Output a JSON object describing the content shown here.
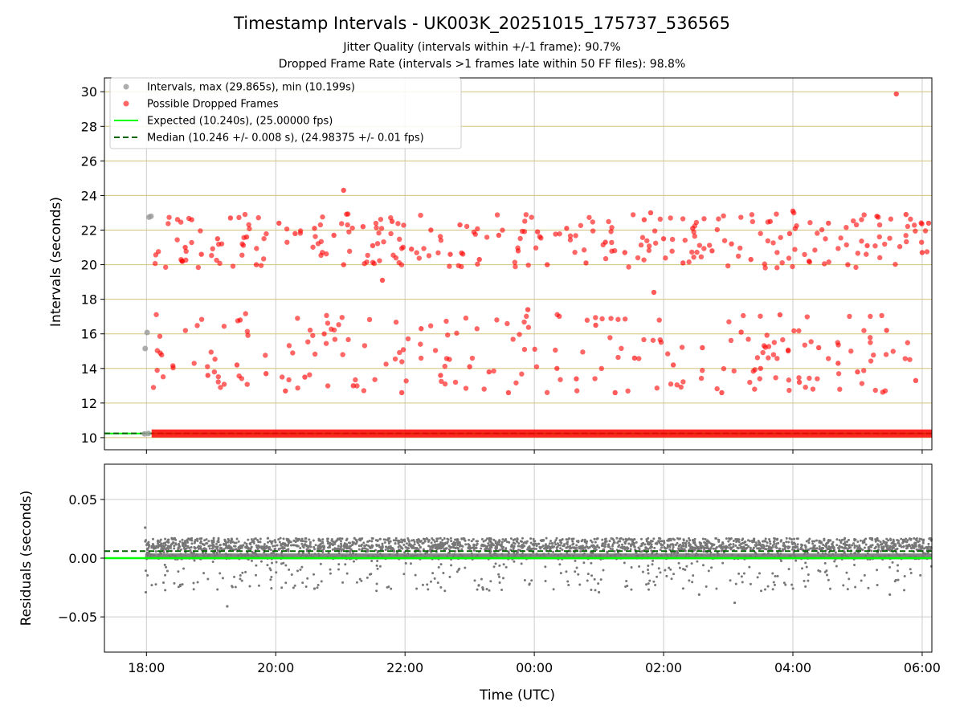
{
  "figure": {
    "title": "Timestamp Intervals - UK003K_20251015_175737_536565",
    "subtitle_1": "Jitter Quality (intervals within +/-1 frame): 90.7%",
    "subtitle_2": "Dropped Frame Rate (intervals >1 frames late within 50 FF files): 98.8%"
  },
  "colors": {
    "intervals": "#999999",
    "dropped": "#ff0000",
    "expected": "#00ff00",
    "median": "#006400",
    "grid_top": "#d4c27a",
    "grid_bottom": "#cccccc",
    "residual_points": "#777777"
  },
  "chart_data": [
    {
      "type": "scatter",
      "id": "intervals",
      "ylabel": "Intervals (seconds)",
      "xlim_hours": [
        17.35,
        30.15
      ],
      "ylim": [
        9.3,
        30.8
      ],
      "yticks": [
        10,
        12,
        14,
        16,
        18,
        20,
        22,
        24,
        26,
        28,
        30
      ],
      "grid": true,
      "legend_position": "top-left",
      "legend": [
        {
          "key": "intervals",
          "label": "Intervals, max (29.865s), min (10.199s)"
        },
        {
          "key": "dropped",
          "label": "Possible Dropped Frames"
        },
        {
          "key": "expected",
          "label": "Expected (10.240s), (25.00000 fps)"
        },
        {
          "key": "median",
          "label": "Median (10.246 +/- 0.008 s), (24.98375 +/- 0.01 fps)"
        }
      ],
      "expected_value": 10.24,
      "median_value": 10.246,
      "baseline_range_hours": [
        17.98,
        30.15
      ],
      "intervals_points": [
        [
          17.98,
          15.15
        ],
        [
          18.01,
          16.08
        ],
        [
          18.04,
          22.75
        ],
        [
          18.07,
          22.8
        ],
        [
          17.97,
          10.22
        ],
        [
          18.03,
          10.24
        ]
      ],
      "dropped_points": [
        [
          18.55,
          20.2
        ],
        [
          18.6,
          21.0
        ],
        [
          18.7,
          22.6
        ],
        [
          18.85,
          20.6
        ],
        [
          18.95,
          13.6
        ],
        [
          19.1,
          21.5
        ],
        [
          19.3,
          22.7
        ],
        [
          19.4,
          14.2
        ],
        [
          19.55,
          21.6
        ],
        [
          19.7,
          20.0
        ],
        [
          19.85,
          13.7
        ],
        [
          20.05,
          22.4
        ],
        [
          20.15,
          12.7
        ],
        [
          20.3,
          21.8
        ],
        [
          20.45,
          13.5
        ],
        [
          20.6,
          22.1
        ],
        [
          20.75,
          16.0
        ],
        [
          20.9,
          21.7
        ],
        [
          21.05,
          20.0
        ],
        [
          21.2,
          13.0
        ],
        [
          21.35,
          22.2
        ],
        [
          21.5,
          21.1
        ],
        [
          21.65,
          19.1
        ],
        [
          21.8,
          22.5
        ],
        [
          21.95,
          12.6
        ],
        [
          22.1,
          20.9
        ],
        [
          22.25,
          16.3
        ],
        [
          22.4,
          22.0
        ],
        [
          22.55,
          13.6
        ],
        [
          22.7,
          20.6
        ],
        [
          22.85,
          22.3
        ],
        [
          23.0,
          14.1
        ],
        [
          23.15,
          20.3
        ],
        [
          23.3,
          13.8
        ],
        [
          23.45,
          21.7
        ],
        [
          23.6,
          12.6
        ],
        [
          23.75,
          20.8
        ],
        [
          23.9,
          17.4
        ],
        [
          24.05,
          21.9
        ],
        [
          24.2,
          20.0
        ],
        [
          24.35,
          14.0
        ],
        [
          24.5,
          22.1
        ],
        [
          24.65,
          13.4
        ],
        [
          24.8,
          20.1
        ],
        [
          24.95,
          16.5
        ],
        [
          25.1,
          21.3
        ],
        [
          25.25,
          12.6
        ],
        [
          25.4,
          20.7
        ],
        [
          25.55,
          14.6
        ],
        [
          25.7,
          22.6
        ],
        [
          25.85,
          18.4
        ],
        [
          26.0,
          21.5
        ],
        [
          26.15,
          14.2
        ],
        [
          26.3,
          20.1
        ],
        [
          26.45,
          22.1
        ],
        [
          26.6,
          15.2
        ],
        [
          26.75,
          20.8
        ],
        [
          26.9,
          12.6
        ],
        [
          27.05,
          21.2
        ],
        [
          27.2,
          16.1
        ],
        [
          27.35,
          20.3
        ],
        [
          27.5,
          14.0
        ],
        [
          27.65,
          22.5
        ],
        [
          27.8,
          17.1
        ],
        [
          27.95,
          21.8
        ],
        [
          28.1,
          13.2
        ],
        [
          28.25,
          20.2
        ],
        [
          28.4,
          15.2
        ],
        [
          28.55,
          22.4
        ],
        [
          28.7,
          14.3
        ],
        [
          28.85,
          20.0
        ],
        [
          29.0,
          13.8
        ],
        [
          29.15,
          21.1
        ],
        [
          29.3,
          22.8
        ],
        [
          29.45,
          16.2
        ],
        [
          29.6,
          29.87
        ],
        [
          29.75,
          22.9
        ],
        [
          29.9,
          13.3
        ],
        [
          30.0,
          20.7
        ],
        [
          30.1,
          22.4
        ],
        [
          21.05,
          24.3
        ],
        [
          19.45,
          16.8
        ],
        [
          25.8,
          23.0
        ],
        [
          28.0,
          23.1
        ]
      ],
      "dropped_band_ranges": [
        [
          12.6,
          17.2
        ],
        [
          19.8,
          23.0
        ]
      ]
    },
    {
      "type": "scatter",
      "id": "residuals",
      "ylabel": "Residuals (seconds)",
      "xlabel": "Time (UTC)",
      "xlim_hours": [
        17.35,
        30.15
      ],
      "ylim": [
        -0.08,
        0.08
      ],
      "yticks": [
        0.05,
        0.0,
        -0.05
      ],
      "ytick_labels": [
        "0.05",
        "0.00",
        "−0.05"
      ],
      "xticks_hours": [
        18,
        20,
        22,
        24,
        26,
        28,
        30
      ],
      "xtick_labels": [
        "18:00",
        "20:00",
        "22:00",
        "00:00",
        "02:00",
        "04:00",
        "06:00"
      ],
      "grid": true,
      "expected_value": 0.0,
      "median_value": 0.006,
      "outlier_points": [
        [
          17.98,
          0.026
        ],
        [
          17.99,
          -0.029
        ],
        [
          19.25,
          -0.041
        ],
        [
          26.55,
          -0.031
        ],
        [
          27.1,
          -0.038
        ],
        [
          29.5,
          -0.031
        ],
        [
          20.6,
          -0.026
        ],
        [
          23.2,
          -0.025
        ],
        [
          25.0,
          -0.029
        ]
      ],
      "residual_band_range": [
        -0.022,
        0.017
      ]
    }
  ]
}
